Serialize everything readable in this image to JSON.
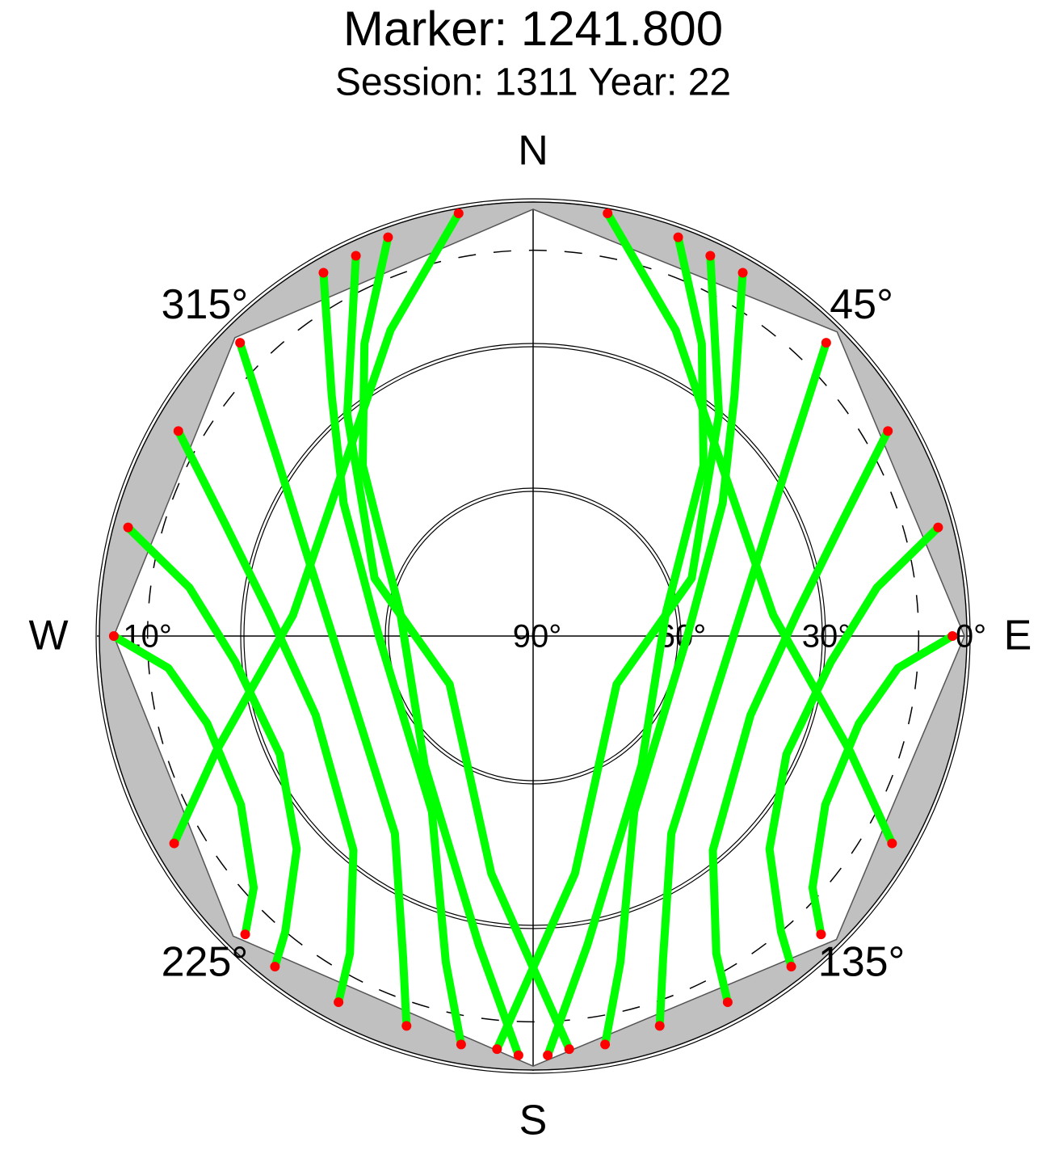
{
  "chart_data": {
    "type": "skyplot",
    "title": "Marker: 1241.800",
    "subtitle": "Session: 1311 Year: 22",
    "cardinals": [
      {
        "value": 0,
        "label": "N"
      },
      {
        "value": 90,
        "label": "E"
      },
      {
        "value": 180,
        "label": "S"
      },
      {
        "value": 270,
        "label": "W"
      }
    ],
    "azimuth_ticks": [
      {
        "value": 45,
        "label": "45°"
      },
      {
        "value": 135,
        "label": "135°"
      },
      {
        "value": 225,
        "label": "225°"
      },
      {
        "value": 315,
        "label": "315°"
      }
    ],
    "rlim": [
      0,
      90
    ],
    "rticks": [
      {
        "value": 0,
        "label": "0°"
      },
      {
        "value": 30,
        "label": "30°"
      },
      {
        "value": 60,
        "label": "60°"
      },
      {
        "value": 90,
        "label": "90°"
      }
    ],
    "dashed_ring": {
      "value": 10,
      "label": "10°"
    },
    "horizon_mask": {
      "color": "#c0c0c0",
      "azimuth": [
        0,
        45,
        90,
        135,
        180,
        225,
        270,
        315,
        360
      ],
      "elevation": [
        1.5,
        0.8,
        0.5,
        1,
        0.8,
        2,
        3,
        2.5,
        1.5
      ]
    },
    "track_color": "#00ff00",
    "low_color": "#ff0000",
    "low_elevation": 6,
    "tracks": [
      {
        "azimuth": [
          20,
          30,
          45,
          80,
          140,
          170,
          178
        ],
        "elevation": [
          2,
          20,
          40,
          62,
          55,
          25,
          3
        ]
      },
      {
        "azimuth": [
          30,
          40,
          55,
          90,
          150,
          165,
          170
        ],
        "elevation": [
          3,
          25,
          42,
          58,
          48,
          20,
          4
        ]
      },
      {
        "azimuth": [
          45,
          55,
          70,
          100,
          145,
          158,
          162
        ],
        "elevation": [
          4,
          25,
          40,
          50,
          40,
          18,
          5
        ]
      },
      {
        "azimuth": [
          60,
          70,
          85,
          110,
          140,
          150,
          152
        ],
        "elevation": [
          5,
          22,
          35,
          42,
          32,
          14,
          4
        ]
      },
      {
        "azimuth": [
          75,
          82,
          95,
          115,
          132,
          140,
          142
        ],
        "elevation": [
          3,
          18,
          28,
          32,
          24,
          10,
          3
        ]
      },
      {
        "azimuth": [
          90,
          95,
          105,
          120,
          132,
          136
        ],
        "elevation": [
          3,
          14,
          20,
          20,
          12,
          4
        ]
      },
      {
        "azimuth": [
          340,
          330,
          315,
          280,
          220,
          190,
          182
        ],
        "elevation": [
          2,
          20,
          40,
          62,
          55,
          25,
          3
        ]
      },
      {
        "azimuth": [
          330,
          320,
          305,
          270,
          210,
          195,
          190
        ],
        "elevation": [
          3,
          25,
          42,
          58,
          48,
          20,
          4
        ]
      },
      {
        "azimuth": [
          315,
          305,
          290,
          260,
          215,
          202,
          198
        ],
        "elevation": [
          4,
          25,
          40,
          50,
          40,
          18,
          5
        ]
      },
      {
        "azimuth": [
          300,
          290,
          275,
          250,
          220,
          210,
          208
        ],
        "elevation": [
          5,
          22,
          35,
          42,
          32,
          14,
          4
        ]
      },
      {
        "azimuth": [
          285,
          278,
          265,
          245,
          228,
          220,
          218
        ],
        "elevation": [
          3,
          18,
          28,
          32,
          24,
          10,
          3
        ]
      },
      {
        "azimuth": [
          270,
          265,
          255,
          240,
          228,
          224
        ],
        "elevation": [
          3,
          14,
          20,
          20,
          12,
          4
        ]
      },
      {
        "azimuth": [
          25,
          40,
          70,
          120,
          170,
          185
        ],
        "elevation": [
          3,
          30,
          55,
          70,
          40,
          4
        ]
      },
      {
        "azimuth": [
          335,
          320,
          290,
          240,
          190,
          175
        ],
        "elevation": [
          3,
          30,
          55,
          70,
          40,
          4
        ]
      },
      {
        "azimuth": [
          10,
          25,
          50,
          85,
          110,
          120
        ],
        "elevation": [
          1,
          20,
          38,
          40,
          20,
          4
        ]
      },
      {
        "azimuth": [
          350,
          335,
          310,
          275,
          250,
          240
        ],
        "elevation": [
          1,
          20,
          38,
          40,
          20,
          4
        ]
      }
    ]
  }
}
